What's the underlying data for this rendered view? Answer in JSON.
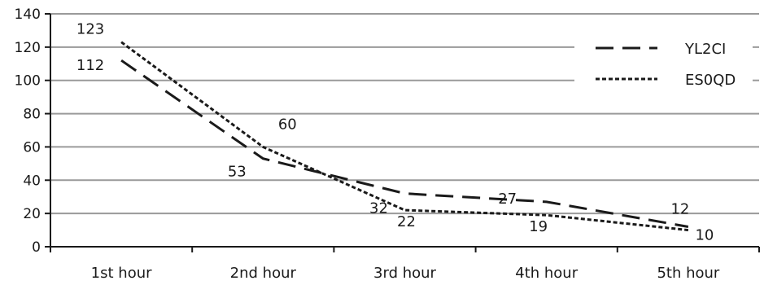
{
  "chart_data": {
    "type": "line",
    "categories": [
      "1st hour",
      "2nd hour",
      "3rd hour",
      "4th hour",
      "5th hour"
    ],
    "series": [
      {
        "name": "YL2CI",
        "values": [
          112,
          53,
          32,
          27,
          12
        ],
        "dash": "long-dash",
        "color": "#1a1a1a"
      },
      {
        "name": "ES0QD",
        "values": [
          123,
          60,
          22,
          19,
          10
        ],
        "dash": "short-dash",
        "color": "#1a1a1a"
      }
    ],
    "ylim": [
      0,
      140
    ],
    "yticks": [
      0,
      20,
      40,
      60,
      80,
      100,
      120,
      140
    ],
    "grid": true,
    "legend": "top-right",
    "title": "",
    "xlabel": "",
    "ylabel": ""
  }
}
